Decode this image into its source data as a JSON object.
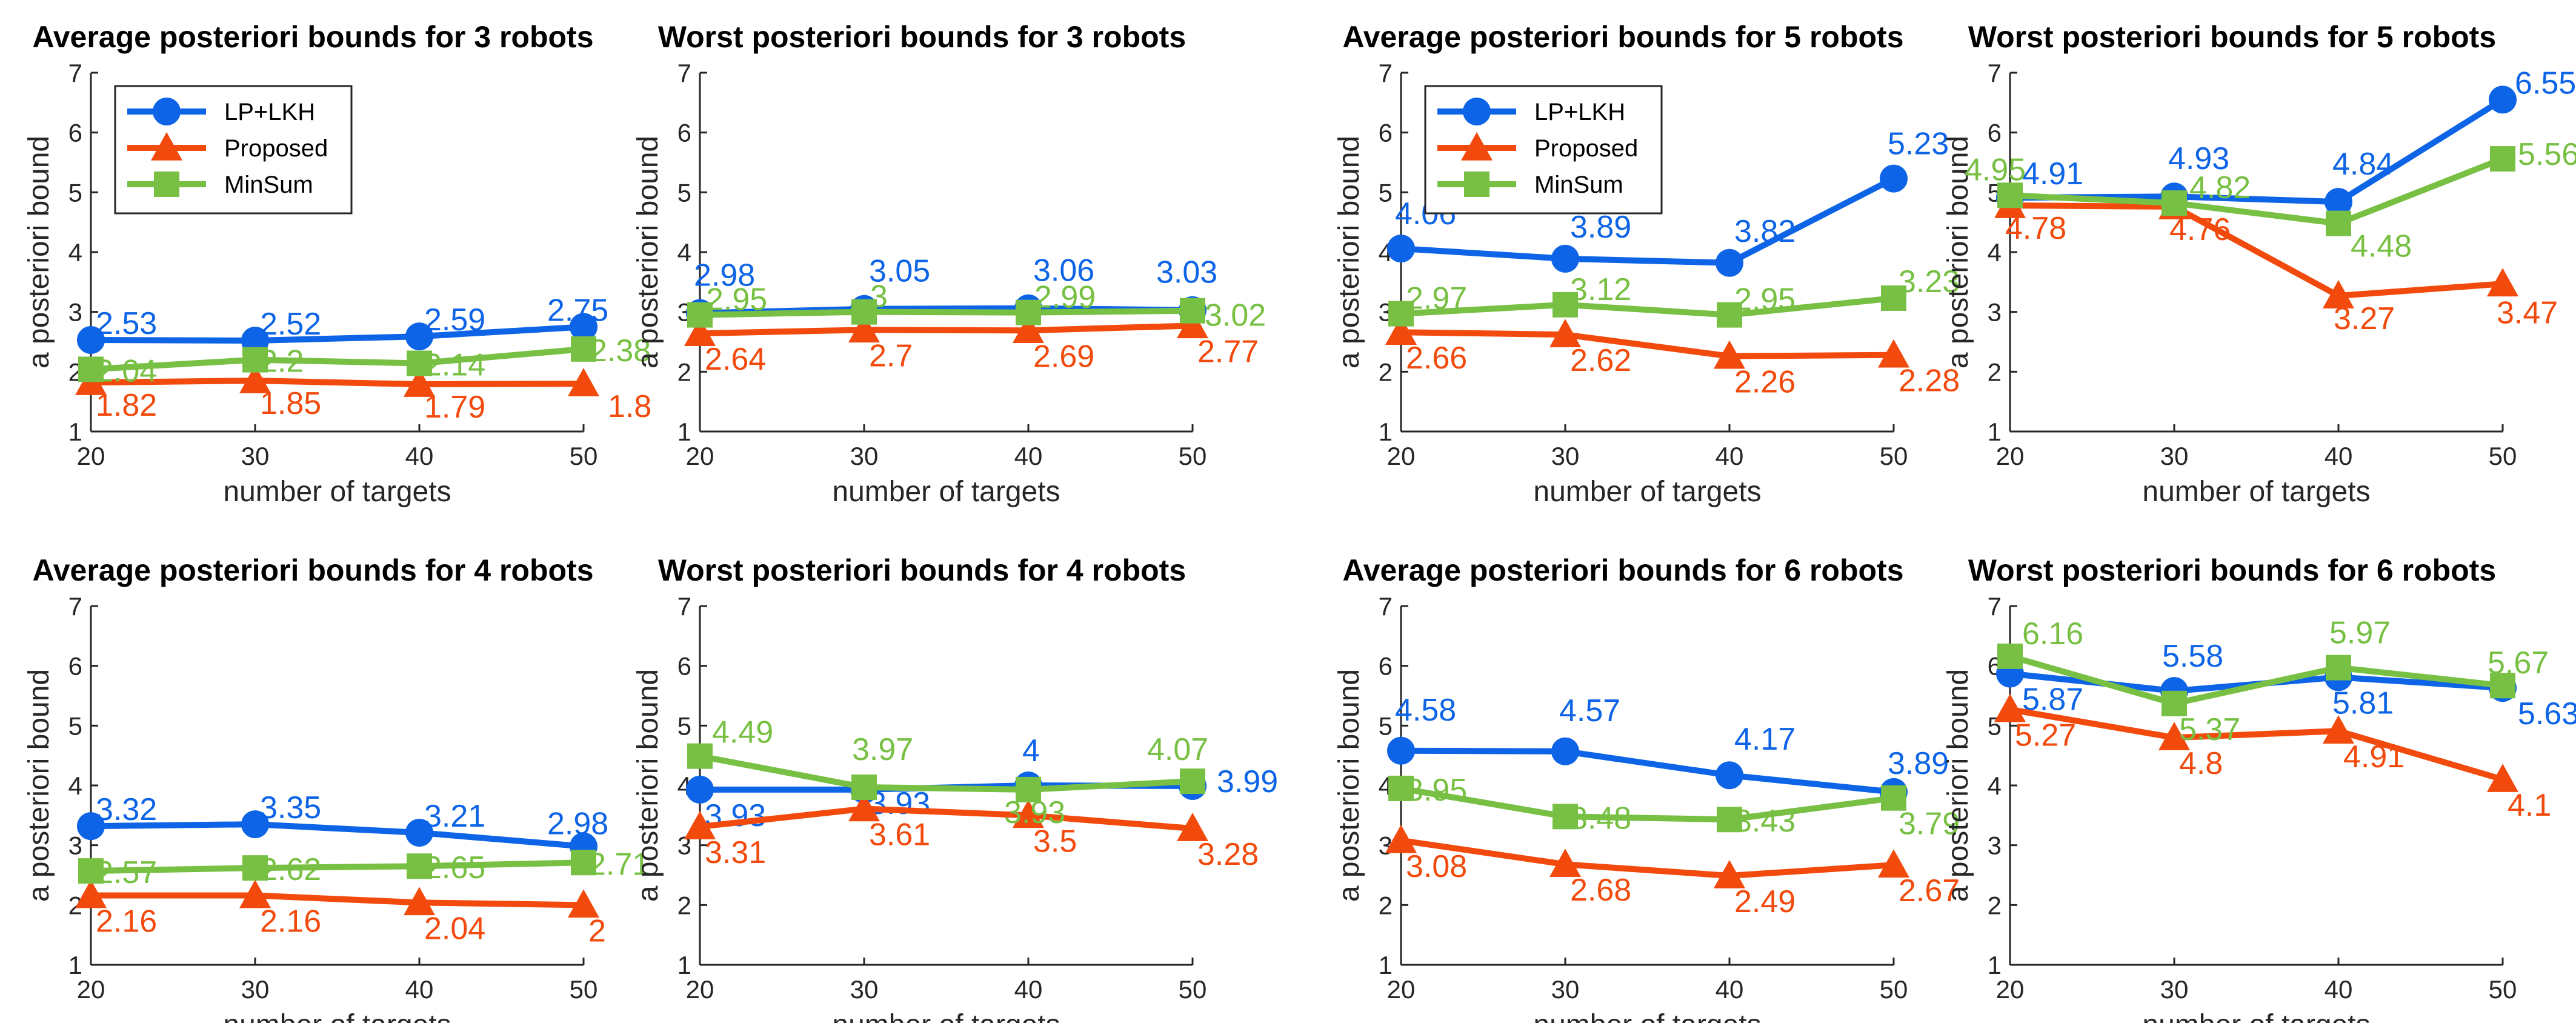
{
  "series_styles": [
    {
      "name": "LP+LKH",
      "color": "#0D64E6",
      "marker": "circle"
    },
    {
      "name": "Proposed",
      "color": "#F24A0C",
      "marker": "triangle"
    },
    {
      "name": "MinSum",
      "color": "#77C043",
      "marker": "square"
    }
  ],
  "chart_data": [
    {
      "type": "line",
      "title": "Average posteriori bounds for 3 robots",
      "xlabel": "number of targets",
      "ylabel": "a posteriori bound",
      "x": [
        20,
        30,
        40,
        50
      ],
      "xticks": [
        "20",
        "30",
        "40",
        "50"
      ],
      "ylim": [
        1,
        7
      ],
      "yticks": [
        "1",
        "2",
        "3",
        "4",
        "5",
        "6",
        "7"
      ],
      "legend": "top-left",
      "series": [
        {
          "name": "LP+LKH",
          "values": [
            2.53,
            2.52,
            2.59,
            2.75
          ],
          "labels": [
            "2.53",
            "2.52",
            "2.59",
            "2.75"
          ]
        },
        {
          "name": "Proposed",
          "values": [
            1.82,
            1.85,
            1.79,
            1.8
          ],
          "labels": [
            "1.82",
            "1.85",
            "1.79",
            "1.8"
          ]
        },
        {
          "name": "MinSum",
          "values": [
            2.04,
            2.2,
            2.14,
            2.38
          ],
          "labels": [
            "2.04",
            "2.2",
            "2.14",
            "2.38"
          ]
        }
      ]
    },
    {
      "type": "line",
      "title": "Worst posteriori bounds for 3 robots",
      "xlabel": "number of targets",
      "ylabel": "a posteriori bound",
      "x": [
        20,
        30,
        40,
        50
      ],
      "xticks": [
        "20",
        "30",
        "40",
        "50"
      ],
      "ylim": [
        1,
        7
      ],
      "yticks": [
        "1",
        "2",
        "3",
        "4",
        "5",
        "6",
        "7"
      ],
      "legend": "none",
      "series": [
        {
          "name": "LP+LKH",
          "values": [
            2.98,
            3.05,
            3.06,
            3.03
          ],
          "labels": [
            "2.98",
            "3.05",
            "3.06",
            "3.03"
          ]
        },
        {
          "name": "Proposed",
          "values": [
            2.64,
            2.7,
            2.69,
            2.77
          ],
          "labels": [
            "2.64",
            "2.7",
            "2.69",
            "2.77"
          ]
        },
        {
          "name": "MinSum",
          "values": [
            2.95,
            3,
            2.99,
            3.02
          ],
          "labels": [
            "2.95",
            "3",
            "2.99",
            "3.02"
          ]
        }
      ]
    },
    {
      "type": "line",
      "title": "Average posteriori bounds for 5 robots",
      "xlabel": "number of targets",
      "ylabel": "a posteriori bound",
      "x": [
        20,
        30,
        40,
        50
      ],
      "xticks": [
        "20",
        "30",
        "40",
        "50"
      ],
      "ylim": [
        1,
        7
      ],
      "yticks": [
        "1",
        "2",
        "3",
        "4",
        "5",
        "6",
        "7"
      ],
      "legend": "top-left",
      "series": [
        {
          "name": "LP+LKH",
          "values": [
            4.06,
            3.89,
            3.82,
            5.23
          ],
          "labels": [
            "4.06",
            "3.89",
            "3.82",
            "5.23"
          ]
        },
        {
          "name": "Proposed",
          "values": [
            2.66,
            2.62,
            2.26,
            2.28
          ],
          "labels": [
            "2.66",
            "2.62",
            "2.26",
            "2.28"
          ]
        },
        {
          "name": "MinSum",
          "values": [
            2.97,
            3.12,
            2.95,
            3.23
          ],
          "labels": [
            "2.97",
            "3.12",
            "2.95",
            "3.23"
          ]
        }
      ]
    },
    {
      "type": "line",
      "title": "Worst posteriori bounds for 5 robots",
      "xlabel": "number of targets",
      "ylabel": "a posteriori bound",
      "x": [
        20,
        30,
        40,
        50
      ],
      "xticks": [
        "20",
        "30",
        "40",
        "50"
      ],
      "ylim": [
        1,
        7
      ],
      "yticks": [
        "1",
        "2",
        "3",
        "4",
        "5",
        "6",
        "7"
      ],
      "legend": "none",
      "series": [
        {
          "name": "LP+LKH",
          "values": [
            4.91,
            4.93,
            4.84,
            6.55
          ],
          "labels": [
            "4.91",
            "4.93",
            "4.84",
            "6.55"
          ]
        },
        {
          "name": "Proposed",
          "values": [
            4.78,
            4.76,
            3.27,
            3.47
          ],
          "labels": [
            "4.78",
            "4.76",
            "3.27",
            "3.47"
          ]
        },
        {
          "name": "MinSum",
          "values": [
            4.95,
            4.82,
            4.48,
            5.56
          ],
          "labels": [
            "4.95",
            "4.82",
            "4.48",
            "5.56"
          ]
        }
      ]
    },
    {
      "type": "line",
      "title": "Average posteriori bounds for 4 robots",
      "xlabel": "number of targets",
      "ylabel": "a posteriori bound",
      "x": [
        20,
        30,
        40,
        50
      ],
      "xticks": [
        "20",
        "30",
        "40",
        "50"
      ],
      "ylim": [
        1,
        7
      ],
      "yticks": [
        "1",
        "2",
        "3",
        "4",
        "5",
        "6",
        "7"
      ],
      "legend": "none",
      "series": [
        {
          "name": "LP+LKH",
          "values": [
            3.32,
            3.35,
            3.21,
            2.98
          ],
          "labels": [
            "3.32",
            "3.35",
            "3.21",
            "2.98"
          ]
        },
        {
          "name": "Proposed",
          "values": [
            2.16,
            2.16,
            2.04,
            2
          ],
          "labels": [
            "2.16",
            "2.16",
            "2.04",
            "2"
          ]
        },
        {
          "name": "MinSum",
          "values": [
            2.57,
            2.62,
            2.65,
            2.71
          ],
          "labels": [
            "2.57",
            "2.62",
            "2.65",
            "2.71"
          ]
        }
      ]
    },
    {
      "type": "line",
      "title": "Worst posteriori bounds for 4 robots",
      "xlabel": "number of targets",
      "ylabel": "a posteriori bound",
      "x": [
        20,
        30,
        40,
        50
      ],
      "xticks": [
        "20",
        "30",
        "40",
        "50"
      ],
      "ylim": [
        1,
        7
      ],
      "yticks": [
        "1",
        "2",
        "3",
        "4",
        "5",
        "6",
        "7"
      ],
      "legend": "none",
      "series": [
        {
          "name": "LP+LKH",
          "values": [
            3.93,
            3.93,
            4,
            3.99
          ],
          "labels": [
            "3.93",
            "3.93",
            "4",
            "3.99"
          ]
        },
        {
          "name": "Proposed",
          "values": [
            3.31,
            3.61,
            3.5,
            3.28
          ],
          "labels": [
            "3.31",
            "3.61",
            "3.5",
            "3.28"
          ]
        },
        {
          "name": "MinSum",
          "values": [
            4.49,
            3.97,
            3.93,
            4.07
          ],
          "labels": [
            "4.49",
            "3.97",
            "3.93",
            "4.07"
          ]
        }
      ]
    },
    {
      "type": "line",
      "title": "Average posteriori bounds for 6 robots",
      "xlabel": "number of targets",
      "ylabel": "a posteriori bound",
      "x": [
        20,
        30,
        40,
        50
      ],
      "xticks": [
        "20",
        "30",
        "40",
        "50"
      ],
      "ylim": [
        1,
        7
      ],
      "yticks": [
        "1",
        "2",
        "3",
        "4",
        "5",
        "6",
        "7"
      ],
      "legend": "none",
      "series": [
        {
          "name": "LP+LKH",
          "values": [
            4.58,
            4.57,
            4.17,
            3.89
          ],
          "labels": [
            "4.58",
            "4.57",
            "4.17",
            "3.89"
          ]
        },
        {
          "name": "Proposed",
          "values": [
            3.08,
            2.68,
            2.49,
            2.67
          ],
          "labels": [
            "3.08",
            "2.68",
            "2.49",
            "2.67"
          ]
        },
        {
          "name": "MinSum",
          "values": [
            3.95,
            3.48,
            3.43,
            3.79
          ],
          "labels": [
            "3.95",
            "3.48",
            "3.43",
            "3.79"
          ]
        }
      ]
    },
    {
      "type": "line",
      "title": "Worst posteriori bounds for 6 robots",
      "xlabel": "number of targets",
      "ylabel": "a posteriori bound",
      "x": [
        20,
        30,
        40,
        50
      ],
      "xticks": [
        "20",
        "30",
        "40",
        "50"
      ],
      "ylim": [
        1,
        7
      ],
      "yticks": [
        "1",
        "2",
        "3",
        "4",
        "5",
        "6",
        "7"
      ],
      "legend": "none",
      "series": [
        {
          "name": "LP+LKH",
          "values": [
            5.87,
            5.58,
            5.81,
            5.63
          ],
          "labels": [
            "5.87",
            "5.58",
            "5.81",
            "5.63"
          ]
        },
        {
          "name": "Proposed",
          "values": [
            5.27,
            4.8,
            4.91,
            4.1
          ],
          "labels": [
            "5.27",
            "4.8",
            "4.91",
            "4.1"
          ]
        },
        {
          "name": "MinSum",
          "values": [
            6.16,
            5.37,
            5.97,
            5.67
          ],
          "labels": [
            "6.16",
            "5.37",
            "5.97",
            "5.67"
          ]
        }
      ]
    }
  ]
}
